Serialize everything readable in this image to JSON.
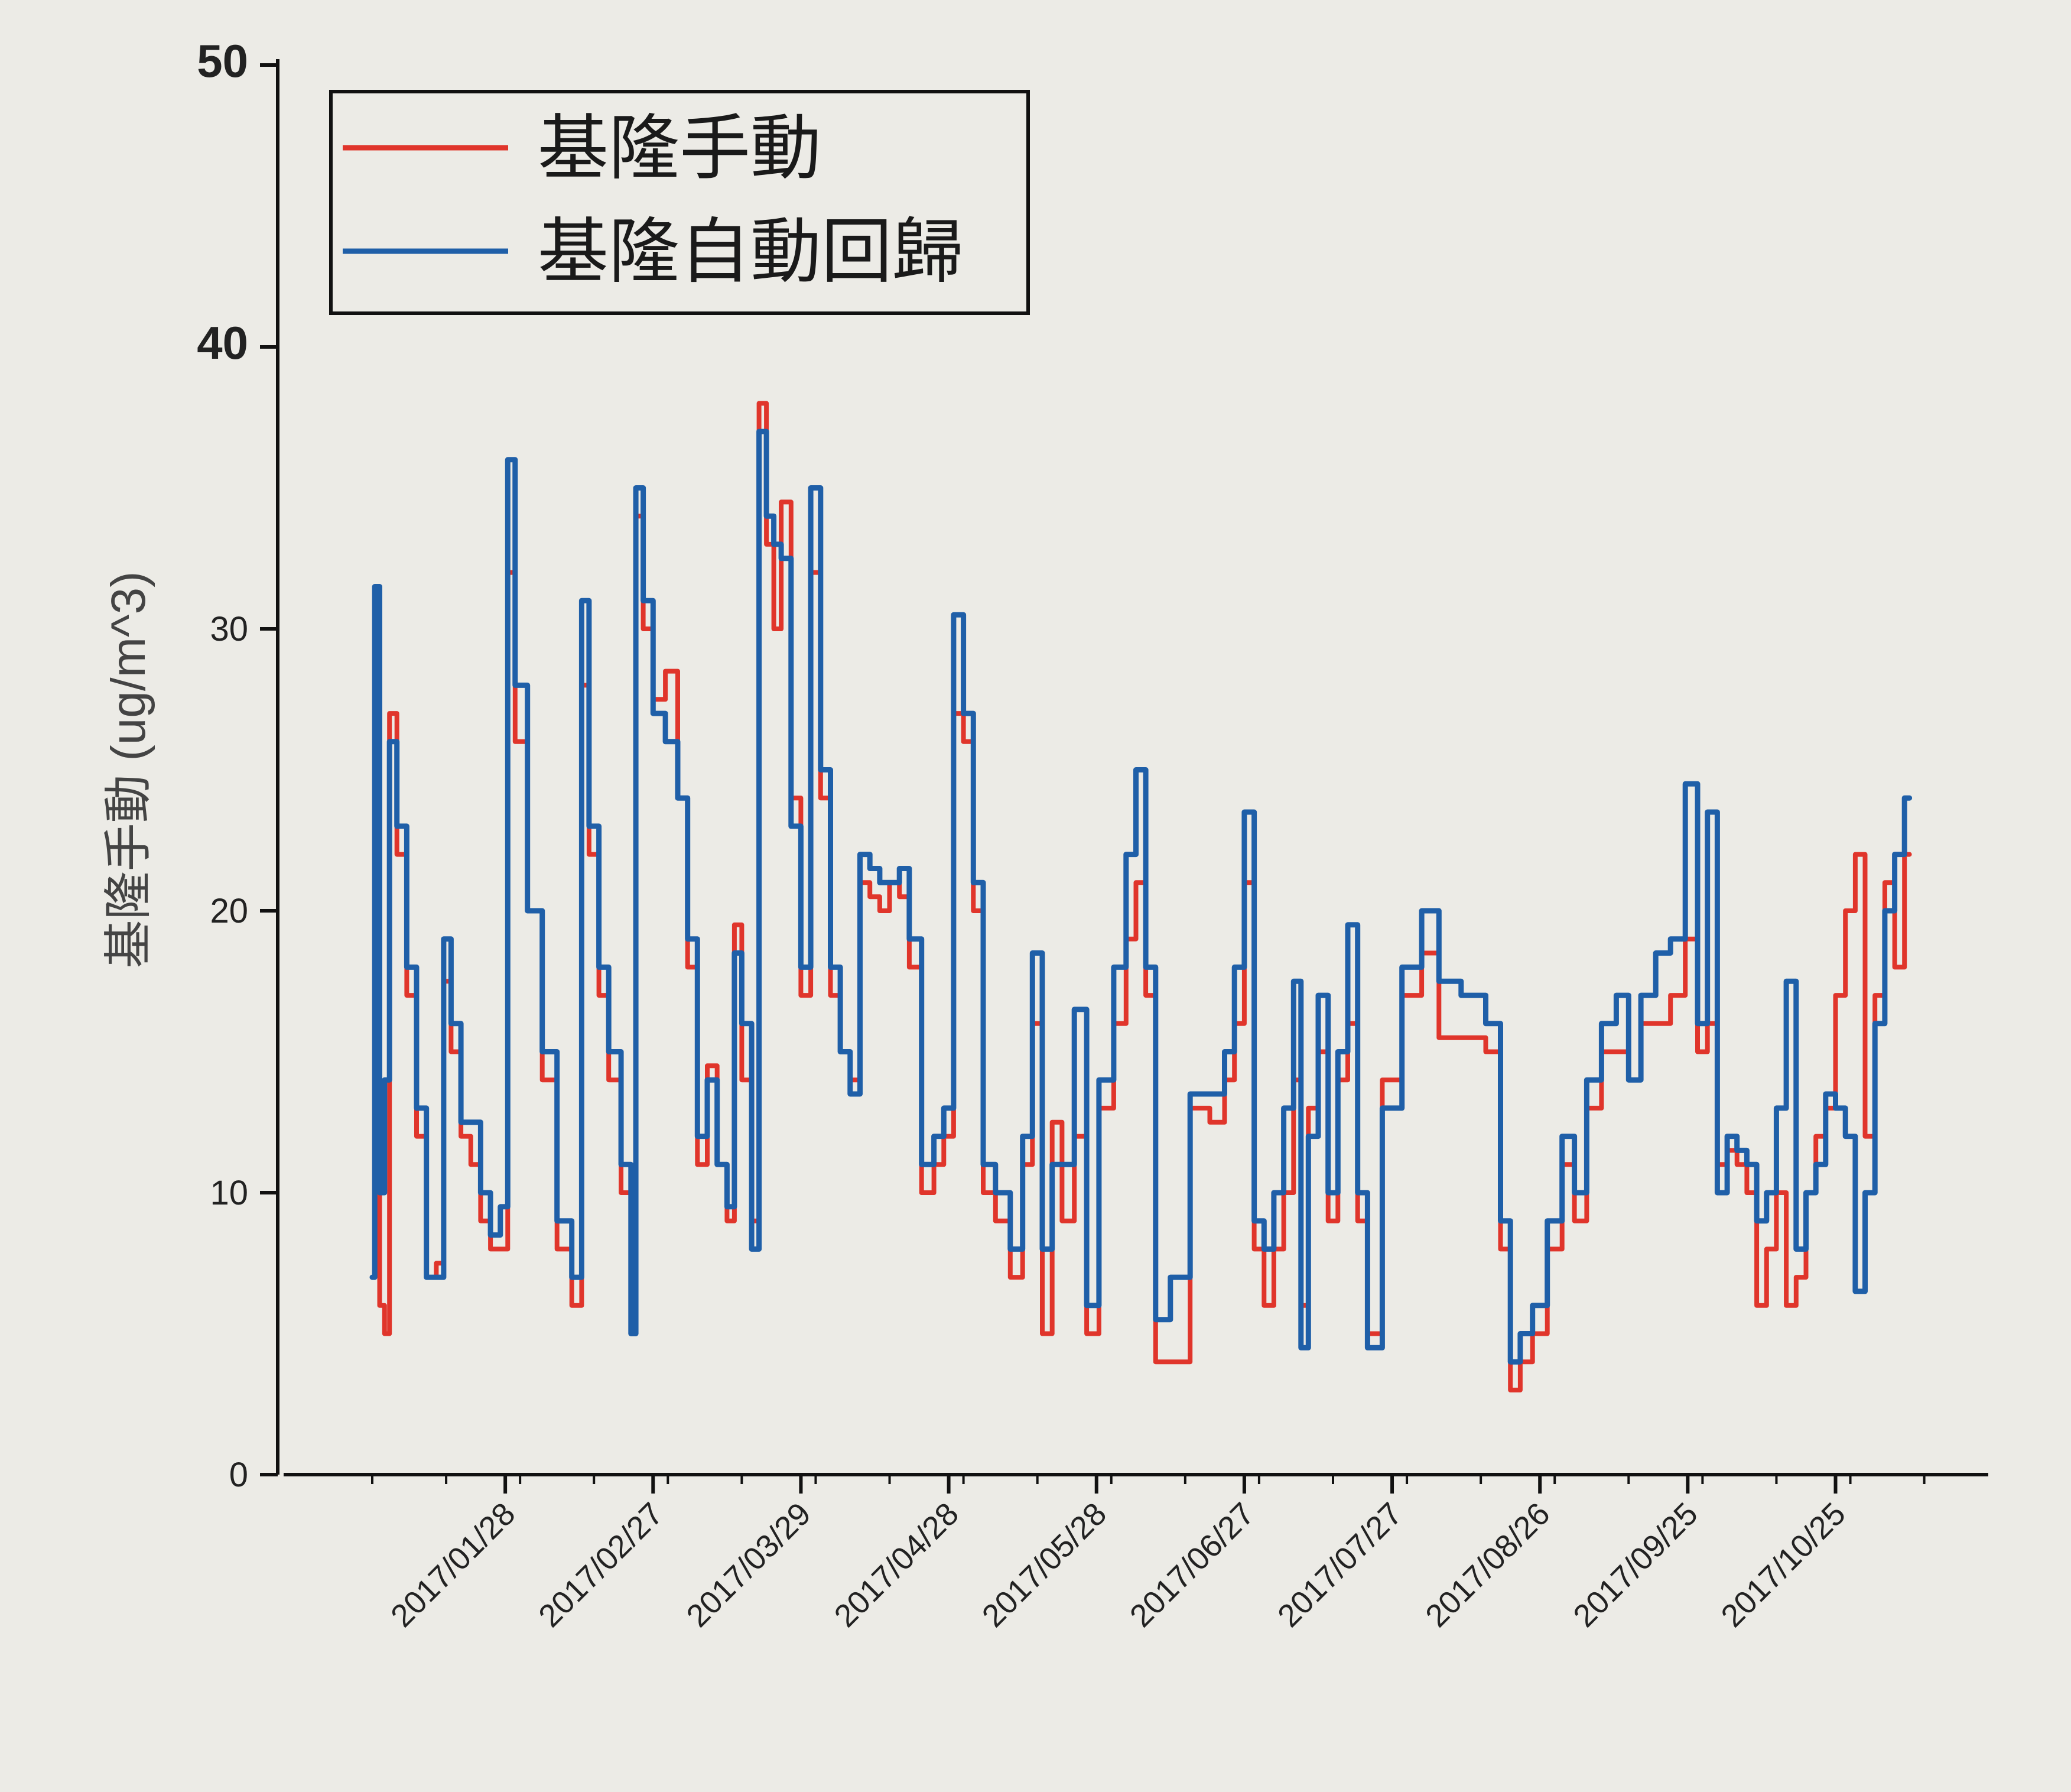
{
  "chart_data": {
    "type": "line",
    "title": "",
    "xlabel": "",
    "ylabel": "基隆手動 (ug/m^3)",
    "ylim": [
      0,
      50
    ],
    "yticks": [
      0,
      10,
      20,
      30,
      40,
      50
    ],
    "xlim": [
      "2017-01-01",
      "2017-11-25"
    ],
    "xticks": [
      "2017-01-28",
      "2017-02-27",
      "2017-03-29",
      "2017-04-28",
      "2017-05-28",
      "2017-06-27",
      "2017-07-27",
      "2017-08-26",
      "2017-09-25",
      "2017-10-25"
    ],
    "xtick_labels": [
      "2017/01/28",
      "2017/02/27",
      "2017/03/29",
      "2017/04/28",
      "2017/05/28",
      "2017/06/27",
      "2017/07/27",
      "2017/08/26",
      "2017/09/25",
      "2017/10/25"
    ],
    "grid": false,
    "legend_position": "top-left",
    "series": [
      {
        "name": "基隆手動",
        "color": "#e0352b",
        "points": [
          [
            "2017-01-01",
            7
          ],
          [
            "2017-01-02",
            30
          ],
          [
            "2017-01-03",
            6
          ],
          [
            "2017-01-04",
            5
          ],
          [
            "2017-01-05",
            27
          ],
          [
            "2017-01-07",
            22
          ],
          [
            "2017-01-09",
            17
          ],
          [
            "2017-01-11",
            12
          ],
          [
            "2017-01-13",
            7
          ],
          [
            "2017-01-15",
            7.5
          ],
          [
            "2017-01-16",
            17.5
          ],
          [
            "2017-01-18",
            15
          ],
          [
            "2017-01-20",
            12
          ],
          [
            "2017-01-22",
            11
          ],
          [
            "2017-01-24",
            9
          ],
          [
            "2017-01-26",
            8
          ],
          [
            "2017-01-28",
            8
          ],
          [
            "2017-01-29",
            32
          ],
          [
            "2017-01-31",
            26
          ],
          [
            "2017-02-03",
            20
          ],
          [
            "2017-02-06",
            14
          ],
          [
            "2017-02-09",
            8
          ],
          [
            "2017-02-12",
            6
          ],
          [
            "2017-02-13",
            28
          ],
          [
            "2017-02-15",
            22
          ],
          [
            "2017-02-17",
            17
          ],
          [
            "2017-02-19",
            14
          ],
          [
            "2017-02-22",
            10
          ],
          [
            "2017-02-23",
            5
          ],
          [
            "2017-02-24",
            34
          ],
          [
            "2017-02-26",
            30
          ],
          [
            "2017-02-28",
            27.5
          ],
          [
            "2017-03-03",
            28.5
          ],
          [
            "2017-03-05",
            24
          ],
          [
            "2017-03-07",
            18
          ],
          [
            "2017-03-09",
            11
          ],
          [
            "2017-03-11",
            14.5
          ],
          [
            "2017-03-13",
            11
          ],
          [
            "2017-03-15",
            9
          ],
          [
            "2017-03-16",
            19.5
          ],
          [
            "2017-03-18",
            14
          ],
          [
            "2017-03-20",
            9
          ],
          [
            "2017-03-21",
            38
          ],
          [
            "2017-03-23",
            33
          ],
          [
            "2017-03-24",
            30
          ],
          [
            "2017-03-26",
            34.5
          ],
          [
            "2017-03-28",
            24
          ],
          [
            "2017-03-30",
            17
          ],
          [
            "2017-04-01",
            32
          ],
          [
            "2017-04-03",
            24
          ],
          [
            "2017-04-05",
            17
          ],
          [
            "2017-04-07",
            15
          ],
          [
            "2017-04-09",
            14
          ],
          [
            "2017-04-11",
            21
          ],
          [
            "2017-04-13",
            20.5
          ],
          [
            "2017-04-15",
            20
          ],
          [
            "2017-04-17",
            21
          ],
          [
            "2017-04-19",
            20.5
          ],
          [
            "2017-04-21",
            18
          ],
          [
            "2017-04-24",
            10
          ],
          [
            "2017-04-26",
            11
          ],
          [
            "2017-04-28",
            12
          ],
          [
            "2017-04-30",
            27
          ],
          [
            "2017-05-02",
            26
          ],
          [
            "2017-05-04",
            20
          ],
          [
            "2017-05-06",
            10
          ],
          [
            "2017-05-09",
            9
          ],
          [
            "2017-05-12",
            7
          ],
          [
            "2017-05-14",
            11
          ],
          [
            "2017-05-16",
            16
          ],
          [
            "2017-05-18",
            5
          ],
          [
            "2017-05-20",
            12.5
          ],
          [
            "2017-05-22",
            9
          ],
          [
            "2017-05-25",
            12
          ],
          [
            "2017-05-27",
            5
          ],
          [
            "2017-05-30",
            13
          ],
          [
            "2017-06-02",
            16
          ],
          [
            "2017-06-04",
            19
          ],
          [
            "2017-06-06",
            21
          ],
          [
            "2017-06-08",
            17
          ],
          [
            "2017-06-10",
            4
          ],
          [
            "2017-06-14",
            4
          ],
          [
            "2017-06-18",
            13
          ],
          [
            "2017-06-22",
            12.5
          ],
          [
            "2017-06-24",
            14
          ],
          [
            "2017-06-26",
            16
          ],
          [
            "2017-06-28",
            21
          ],
          [
            "2017-06-30",
            8
          ],
          [
            "2017-07-02",
            6
          ],
          [
            "2017-07-04",
            8
          ],
          [
            "2017-07-06",
            10
          ],
          [
            "2017-07-08",
            14
          ],
          [
            "2017-07-09",
            6
          ],
          [
            "2017-07-11",
            13
          ],
          [
            "2017-07-13",
            15
          ],
          [
            "2017-07-15",
            9
          ],
          [
            "2017-07-17",
            14
          ],
          [
            "2017-07-19",
            16
          ],
          [
            "2017-07-21",
            9
          ],
          [
            "2017-07-23",
            5
          ],
          [
            "2017-07-27",
            14
          ],
          [
            "2017-07-31",
            17
          ],
          [
            "2017-08-04",
            18.5
          ],
          [
            "2017-08-07",
            15.5
          ],
          [
            "2017-08-13",
            15.5
          ],
          [
            "2017-08-17",
            15
          ],
          [
            "2017-08-19",
            8
          ],
          [
            "2017-08-21",
            3
          ],
          [
            "2017-08-23",
            4
          ],
          [
            "2017-08-26",
            5
          ],
          [
            "2017-08-29",
            8
          ],
          [
            "2017-09-01",
            11
          ],
          [
            "2017-09-03",
            9
          ],
          [
            "2017-09-06",
            13
          ],
          [
            "2017-09-09",
            15
          ],
          [
            "2017-09-12",
            15
          ],
          [
            "2017-09-14",
            14
          ],
          [
            "2017-09-17",
            16
          ],
          [
            "2017-09-20",
            16
          ],
          [
            "2017-09-23",
            17
          ],
          [
            "2017-09-26",
            19
          ],
          [
            "2017-09-28",
            15
          ],
          [
            "2017-09-30",
            16
          ],
          [
            "2017-10-02",
            11
          ],
          [
            "2017-10-04",
            11.5
          ],
          [
            "2017-10-06",
            11
          ],
          [
            "2017-10-08",
            10
          ],
          [
            "2017-10-10",
            6
          ],
          [
            "2017-10-12",
            8
          ],
          [
            "2017-10-14",
            10
          ],
          [
            "2017-10-16",
            6
          ],
          [
            "2017-10-18",
            7
          ],
          [
            "2017-10-20",
            10
          ],
          [
            "2017-10-22",
            12
          ],
          [
            "2017-10-24",
            13
          ],
          [
            "2017-10-26",
            17
          ],
          [
            "2017-10-28",
            20
          ],
          [
            "2017-10-30",
            22
          ],
          [
            "2017-11-01",
            12
          ],
          [
            "2017-11-03",
            17
          ],
          [
            "2017-11-05",
            21
          ],
          [
            "2017-11-07",
            18
          ],
          [
            "2017-11-09",
            22
          ]
        ]
      },
      {
        "name": "基隆自動回歸",
        "color": "#1f5fa8",
        "points": [
          [
            "2017-01-01",
            7
          ],
          [
            "2017-01-02",
            31.5
          ],
          [
            "2017-01-03",
            10
          ],
          [
            "2017-01-04",
            14
          ],
          [
            "2017-01-05",
            26
          ],
          [
            "2017-01-07",
            23
          ],
          [
            "2017-01-09",
            18
          ],
          [
            "2017-01-11",
            13
          ],
          [
            "2017-01-13",
            7
          ],
          [
            "2017-01-15",
            7
          ],
          [
            "2017-01-16",
            19
          ],
          [
            "2017-01-18",
            16
          ],
          [
            "2017-01-20",
            12.5
          ],
          [
            "2017-01-22",
            12.5
          ],
          [
            "2017-01-24",
            10
          ],
          [
            "2017-01-26",
            8.5
          ],
          [
            "2017-01-28",
            9.5
          ],
          [
            "2017-01-29",
            36
          ],
          [
            "2017-01-31",
            28
          ],
          [
            "2017-02-03",
            20
          ],
          [
            "2017-02-06",
            15
          ],
          [
            "2017-02-09",
            9
          ],
          [
            "2017-02-12",
            7
          ],
          [
            "2017-02-13",
            31
          ],
          [
            "2017-02-15",
            23
          ],
          [
            "2017-02-17",
            18
          ],
          [
            "2017-02-19",
            15
          ],
          [
            "2017-02-22",
            11
          ],
          [
            "2017-02-23",
            5
          ],
          [
            "2017-02-24",
            35
          ],
          [
            "2017-02-26",
            31
          ],
          [
            "2017-02-28",
            27
          ],
          [
            "2017-03-03",
            26
          ],
          [
            "2017-03-05",
            24
          ],
          [
            "2017-03-07",
            19
          ],
          [
            "2017-03-09",
            12
          ],
          [
            "2017-03-11",
            14
          ],
          [
            "2017-03-13",
            11
          ],
          [
            "2017-03-15",
            9.5
          ],
          [
            "2017-03-16",
            18.5
          ],
          [
            "2017-03-18",
            16
          ],
          [
            "2017-03-20",
            8
          ],
          [
            "2017-03-21",
            37
          ],
          [
            "2017-03-23",
            34
          ],
          [
            "2017-03-24",
            33
          ],
          [
            "2017-03-26",
            32.5
          ],
          [
            "2017-03-28",
            23
          ],
          [
            "2017-03-30",
            18
          ],
          [
            "2017-04-01",
            35
          ],
          [
            "2017-04-03",
            25
          ],
          [
            "2017-04-05",
            18
          ],
          [
            "2017-04-07",
            15
          ],
          [
            "2017-04-09",
            13.5
          ],
          [
            "2017-04-11",
            22
          ],
          [
            "2017-04-13",
            21.5
          ],
          [
            "2017-04-15",
            21
          ],
          [
            "2017-04-17",
            21
          ],
          [
            "2017-04-19",
            21.5
          ],
          [
            "2017-04-21",
            19
          ],
          [
            "2017-04-24",
            11
          ],
          [
            "2017-04-26",
            12
          ],
          [
            "2017-04-28",
            13
          ],
          [
            "2017-04-30",
            30.5
          ],
          [
            "2017-05-02",
            27
          ],
          [
            "2017-05-04",
            21
          ],
          [
            "2017-05-06",
            11
          ],
          [
            "2017-05-09",
            10
          ],
          [
            "2017-05-12",
            8
          ],
          [
            "2017-05-14",
            12
          ],
          [
            "2017-05-16",
            18.5
          ],
          [
            "2017-05-18",
            8
          ],
          [
            "2017-05-20",
            11
          ],
          [
            "2017-05-22",
            11
          ],
          [
            "2017-05-25",
            16.5
          ],
          [
            "2017-05-27",
            6
          ],
          [
            "2017-05-30",
            14
          ],
          [
            "2017-06-02",
            18
          ],
          [
            "2017-06-04",
            22
          ],
          [
            "2017-06-06",
            25
          ],
          [
            "2017-06-08",
            18
          ],
          [
            "2017-06-10",
            5.5
          ],
          [
            "2017-06-14",
            7
          ],
          [
            "2017-06-18",
            13.5
          ],
          [
            "2017-06-22",
            13.5
          ],
          [
            "2017-06-24",
            15
          ],
          [
            "2017-06-26",
            18
          ],
          [
            "2017-06-28",
            23.5
          ],
          [
            "2017-06-30",
            9
          ],
          [
            "2017-07-02",
            8
          ],
          [
            "2017-07-04",
            10
          ],
          [
            "2017-07-06",
            13
          ],
          [
            "2017-07-08",
            17.5
          ],
          [
            "2017-07-09",
            4.5
          ],
          [
            "2017-07-11",
            12
          ],
          [
            "2017-07-13",
            17
          ],
          [
            "2017-07-15",
            10
          ],
          [
            "2017-07-17",
            15
          ],
          [
            "2017-07-19",
            19.5
          ],
          [
            "2017-07-21",
            10
          ],
          [
            "2017-07-23",
            4.5
          ],
          [
            "2017-07-27",
            13
          ],
          [
            "2017-07-31",
            18
          ],
          [
            "2017-08-04",
            20
          ],
          [
            "2017-08-07",
            17.5
          ],
          [
            "2017-08-13",
            17
          ],
          [
            "2017-08-17",
            16
          ],
          [
            "2017-08-19",
            9
          ],
          [
            "2017-08-21",
            4
          ],
          [
            "2017-08-23",
            5
          ],
          [
            "2017-08-26",
            6
          ],
          [
            "2017-08-29",
            9
          ],
          [
            "2017-09-01",
            12
          ],
          [
            "2017-09-03",
            10
          ],
          [
            "2017-09-06",
            14
          ],
          [
            "2017-09-09",
            16
          ],
          [
            "2017-09-12",
            17
          ],
          [
            "2017-09-14",
            14
          ],
          [
            "2017-09-17",
            17
          ],
          [
            "2017-09-20",
            18.5
          ],
          [
            "2017-09-23",
            19
          ],
          [
            "2017-09-26",
            24.5
          ],
          [
            "2017-09-28",
            16
          ],
          [
            "2017-09-30",
            23.5
          ],
          [
            "2017-10-02",
            10
          ],
          [
            "2017-10-04",
            12
          ],
          [
            "2017-10-06",
            11.5
          ],
          [
            "2017-10-08",
            11
          ],
          [
            "2017-10-10",
            9
          ],
          [
            "2017-10-12",
            10
          ],
          [
            "2017-10-14",
            13
          ],
          [
            "2017-10-16",
            17.5
          ],
          [
            "2017-10-18",
            8
          ],
          [
            "2017-10-20",
            10
          ],
          [
            "2017-10-22",
            11
          ],
          [
            "2017-10-24",
            13.5
          ],
          [
            "2017-10-26",
            13
          ],
          [
            "2017-10-28",
            12
          ],
          [
            "2017-10-30",
            6.5
          ],
          [
            "2017-11-01",
            10
          ],
          [
            "2017-11-03",
            16
          ],
          [
            "2017-11-05",
            20
          ],
          [
            "2017-11-07",
            22
          ],
          [
            "2017-11-09",
            24
          ]
        ]
      }
    ]
  }
}
